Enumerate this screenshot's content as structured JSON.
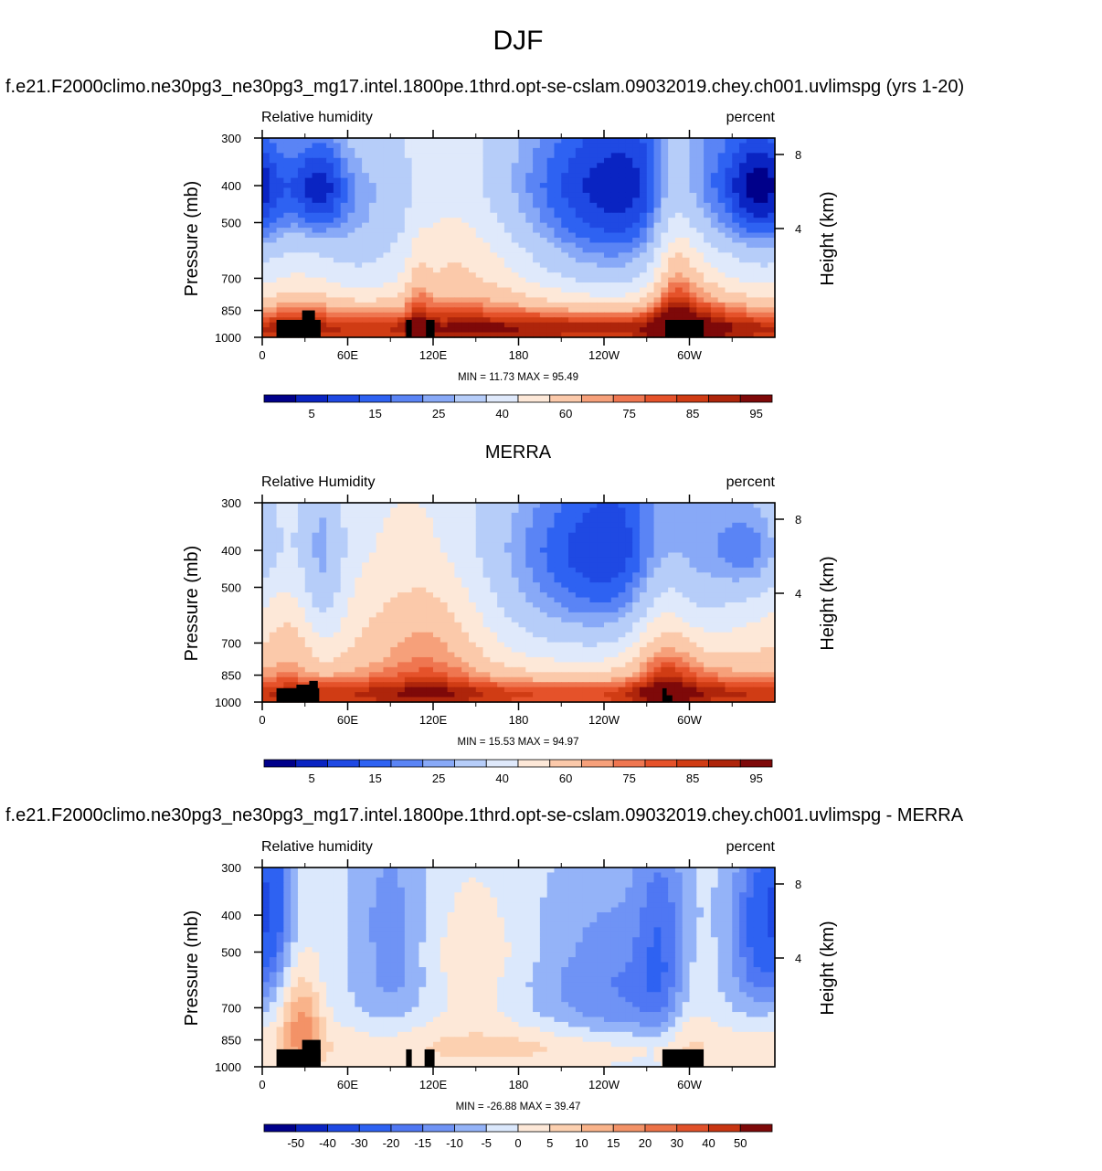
{
  "page": {
    "title": "DJF",
    "model_title": "f.e21.F2000climo.ne30pg3_ne30pg3_mg17.intel.1800pe.1thrd.opt-se-cslam.09032019.chey.ch001.uvlimspg (yrs 1-20)",
    "obs_title": "MERRA",
    "diff_title": "f.e21.F2000climo.ne30pg3_ne30pg3_mg17.intel.1800pe.1thrd.opt-se-cslam.09032019.chey.ch001.uvlimspg - MERRA"
  },
  "colors": {
    "full_palette": [
      "#00008a",
      "#0a24c2",
      "#1f49e3",
      "#2e62f2",
      "#5a84f5",
      "#88a9f7",
      "#b6cdf9",
      "#dfe9fb",
      "#fde8d8",
      "#fbc9aa",
      "#f6a07a",
      "#ef7650",
      "#e5522a",
      "#d03c14",
      "#ae250b",
      "#7e0909"
    ],
    "diff_palette": [
      "#00008a",
      "#0a24c2",
      "#1f49e3",
      "#2e62f2",
      "#4f77f3",
      "#6f93f5",
      "#94b3f8",
      "#b9d1fa",
      "#dbe8fc",
      "#fde8d8",
      "#fcd0b0",
      "#f9b38a",
      "#f39267",
      "#ec7248",
      "#e1512a",
      "#c83512",
      "#9f1e07",
      "#7e0909"
    ],
    "mask": "#000000"
  },
  "chart_data": [
    {
      "type": "heatmap",
      "panel": "model",
      "left_label": "Relative humidity",
      "right_label": "percent",
      "ylabel": "Pressure (mb)",
      "ylabel_right": "Height (km)",
      "xticks": [
        "0",
        "60E",
        "120E",
        "180",
        "120W",
        "60W"
      ],
      "xtick_values": [
        0,
        60,
        120,
        180,
        240,
        300
      ],
      "xlim": [
        0,
        360
      ],
      "yticks": [
        "300",
        "400",
        "500",
        "700",
        "850",
        "1000"
      ],
      "ytick_values": [
        300,
        400,
        500,
        700,
        850,
        1000
      ],
      "ylim": [
        300,
        1000
      ],
      "right_ticks": [
        "8",
        "4"
      ],
      "right_tick_values": [
        8,
        4
      ],
      "stats": "MIN = 11.73  MAX = 95.49",
      "colorbar_labels": [
        "5",
        "15",
        "25",
        "40",
        "60",
        "75",
        "85",
        "95"
      ],
      "colorbar_label_positions": [
        1,
        3,
        5,
        7,
        9,
        11,
        13,
        15
      ],
      "colorbar_boxes": 16,
      "min": 11.73,
      "max": 95.49,
      "base_levels": [
        [
          1000,
          88
        ],
        [
          940,
          92
        ],
        [
          850,
          76
        ],
        [
          780,
          64
        ],
        [
          700,
          56
        ],
        [
          600,
          52
        ],
        [
          500,
          46
        ],
        [
          400,
          42
        ],
        [
          300,
          44
        ]
      ],
      "features": [
        {
          "lon": 100,
          "p": 560,
          "slon": 95,
          "sp": 220,
          "amp": -20
        },
        {
          "lon": 258,
          "p": 400,
          "slon": 60,
          "sp": 260,
          "amp": -32
        },
        {
          "lon": 40,
          "p": 400,
          "slon": 14,
          "sp": 90,
          "amp": -22
        },
        {
          "lon": 350,
          "p": 400,
          "slon": 18,
          "sp": 110,
          "amp": -24
        },
        {
          "lon": 148,
          "p": 600,
          "slon": 40,
          "sp": 220,
          "amp": 20
        },
        {
          "lon": 128,
          "p": 480,
          "slon": 22,
          "sp": 260,
          "amp": 10
        },
        {
          "lon": 290,
          "p": 700,
          "slon": 12,
          "sp": 380,
          "amp": 24
        },
        {
          "lon": 310,
          "p": 750,
          "slon": 22,
          "sp": 260,
          "amp": 14
        },
        {
          "lon": 28,
          "p": 760,
          "slon": 20,
          "sp": 180,
          "amp": 10
        },
        {
          "lon": 110,
          "p": 830,
          "slon": 6,
          "sp": 200,
          "amp": 12
        },
        {
          "lon": 220,
          "p": 930,
          "slon": 60,
          "sp": 50,
          "amp": 6
        }
      ],
      "mask_rects": [
        [
          10,
          41,
          900,
          1000
        ],
        [
          28,
          37,
          850,
          1000
        ],
        [
          101,
          105,
          900,
          1000
        ],
        [
          115,
          121,
          900,
          1000
        ],
        [
          283,
          310,
          900,
          1000
        ]
      ]
    },
    {
      "type": "heatmap",
      "panel": "obs",
      "left_label": "Relative Humidity",
      "right_label": "percent",
      "ylabel": "Pressure (mb)",
      "ylabel_right": "Height (km)",
      "xticks": [
        "0",
        "60E",
        "120E",
        "180",
        "120W",
        "60W"
      ],
      "xtick_values": [
        0,
        60,
        120,
        180,
        240,
        300
      ],
      "xlim": [
        0,
        360
      ],
      "yticks": [
        "300",
        "400",
        "500",
        "700",
        "850",
        "1000"
      ],
      "ytick_values": [
        300,
        400,
        500,
        700,
        850,
        1000
      ],
      "ylim": [
        300,
        1000
      ],
      "right_ticks": [
        "8",
        "4"
      ],
      "right_tick_values": [
        8,
        4
      ],
      "stats": "MIN = 15.53  MAX = 94.97",
      "colorbar_labels": [
        "5",
        "15",
        "25",
        "40",
        "60",
        "75",
        "85",
        "95"
      ],
      "colorbar_label_positions": [
        1,
        3,
        5,
        7,
        9,
        11,
        13,
        15
      ],
      "colorbar_boxes": 16,
      "min": 15.53,
      "max": 94.97,
      "base_levels": [
        [
          1000,
          86
        ],
        [
          940,
          90
        ],
        [
          850,
          72
        ],
        [
          780,
          64
        ],
        [
          700,
          60
        ],
        [
          600,
          56
        ],
        [
          500,
          52
        ],
        [
          400,
          48
        ],
        [
          300,
          48
        ]
      ],
      "features": [
        {
          "lon": 260,
          "p": 400,
          "slon": 55,
          "sp": 240,
          "amp": -30
        },
        {
          "lon": 200,
          "p": 520,
          "slon": 55,
          "sp": 260,
          "amp": -14
        },
        {
          "lon": 42,
          "p": 450,
          "slon": 12,
          "sp": 220,
          "amp": -20
        },
        {
          "lon": 345,
          "p": 400,
          "slon": 18,
          "sp": 90,
          "amp": -16
        },
        {
          "lon": 118,
          "p": 680,
          "slon": 28,
          "sp": 260,
          "amp": 16
        },
        {
          "lon": 282,
          "p": 690,
          "slon": 15,
          "sp": 300,
          "amp": 20
        },
        {
          "lon": 22,
          "p": 700,
          "slon": 14,
          "sp": 170,
          "amp": 8
        },
        {
          "lon": 300,
          "p": 840,
          "slon": 28,
          "sp": 120,
          "amp": 8
        }
      ],
      "mask_rects": [
        [
          10,
          40,
          920,
          1000
        ],
        [
          24,
          34,
          900,
          1000
        ],
        [
          33,
          39,
          880,
          1000
        ],
        [
          281,
          284,
          920,
          1000
        ],
        [
          283,
          288,
          960,
          1000
        ]
      ]
    },
    {
      "type": "heatmap",
      "panel": "diff",
      "left_label": "Relative humidity",
      "right_label": "percent",
      "ylabel": "Pressure (mb)",
      "ylabel_right": "Height (km)",
      "xticks": [
        "0",
        "60E",
        "120E",
        "180",
        "120W",
        "60W"
      ],
      "xtick_values": [
        0,
        60,
        120,
        180,
        240,
        300
      ],
      "xlim": [
        0,
        360
      ],
      "yticks": [
        "300",
        "400",
        "500",
        "700",
        "850",
        "1000"
      ],
      "ytick_values": [
        300,
        400,
        500,
        700,
        850,
        1000
      ],
      "ylim": [
        300,
        1000
      ],
      "right_ticks": [
        "8",
        "4"
      ],
      "right_tick_values": [
        8,
        4
      ],
      "stats": "MIN = -26.88  MAX = 39.47",
      "colorbar_labels": [
        "-50",
        "-40",
        "-30",
        "-20",
        "-15",
        "-10",
        "-5",
        "0",
        "5",
        "10",
        "15",
        "20",
        "30",
        "40",
        "50"
      ],
      "colorbar_label_positions": [
        1,
        2,
        3,
        4,
        5,
        6,
        7,
        8,
        9,
        10,
        11,
        12,
        13,
        14,
        15
      ],
      "colorbar_boxes": 16,
      "min": -26.88,
      "max": 39.47,
      "base_levels": [
        [
          1000,
          2
        ],
        [
          900,
          3
        ],
        [
          800,
          1
        ],
        [
          700,
          -2
        ],
        [
          600,
          -3
        ],
        [
          500,
          -2
        ],
        [
          400,
          -3
        ],
        [
          300,
          -3
        ]
      ],
      "features": [
        {
          "lon": 6,
          "p": 360,
          "slon": 10,
          "sp": 140,
          "amp": -18
        },
        {
          "lon": 350,
          "p": 440,
          "slon": 14,
          "sp": 160,
          "amp": -20
        },
        {
          "lon": 248,
          "p": 620,
          "slon": 40,
          "sp": 220,
          "amp": -12
        },
        {
          "lon": 280,
          "p": 480,
          "slon": 12,
          "sp": 220,
          "amp": -12
        },
        {
          "lon": 90,
          "p": 480,
          "slon": 18,
          "sp": 220,
          "amp": -10
        },
        {
          "lon": 150,
          "p": 520,
          "slon": 25,
          "sp": 180,
          "amp": 6
        },
        {
          "lon": 28,
          "p": 780,
          "slon": 10,
          "sp": 160,
          "amp": 18
        },
        {
          "lon": 300,
          "p": 720,
          "slon": 12,
          "sp": 200,
          "amp": 6
        },
        {
          "lon": 195,
          "p": 880,
          "slon": 70,
          "sp": 60,
          "amp": 5
        }
      ],
      "mask_rects": [
        [
          10,
          41,
          900,
          1000
        ],
        [
          28,
          41,
          850,
          1000
        ],
        [
          101,
          105,
          900,
          1000
        ],
        [
          114,
          121,
          900,
          1000
        ],
        [
          281,
          310,
          900,
          1000
        ]
      ]
    }
  ]
}
